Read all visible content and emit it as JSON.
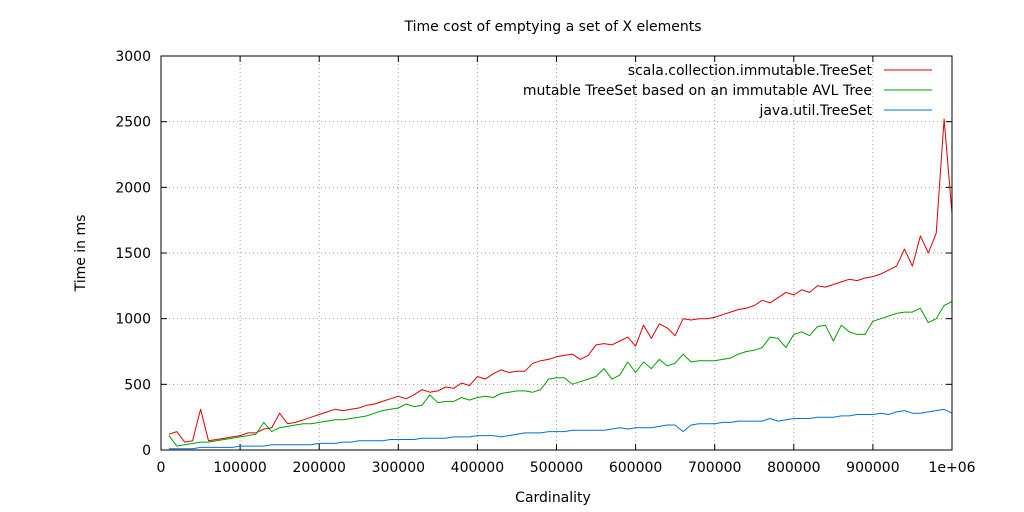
{
  "chart_data": {
    "type": "line",
    "title": "Time cost of emptying a set of X elements",
    "xlabel": "Cardinality",
    "ylabel": "Time in ms",
    "xlim": [
      0,
      1000000
    ],
    "ylim": [
      0,
      3000
    ],
    "xticks": [
      0,
      100000,
      200000,
      300000,
      400000,
      500000,
      600000,
      700000,
      800000,
      900000,
      1000000
    ],
    "xtick_labels": [
      "0",
      "100000",
      "200000",
      "300000",
      "400000",
      "500000",
      "600000",
      "700000",
      "800000",
      "900000",
      "1e+06"
    ],
    "yticks": [
      0,
      500,
      1000,
      1500,
      2000,
      2500,
      3000
    ],
    "ytick_labels": [
      "0",
      "500",
      "1000",
      "1500",
      "2000",
      "2500",
      "3000"
    ],
    "grid": true,
    "legend_position": "top-right",
    "x": [
      10000,
      20000,
      30000,
      40000,
      50000,
      60000,
      70000,
      80000,
      90000,
      100000,
      110000,
      120000,
      130000,
      140000,
      150000,
      160000,
      170000,
      180000,
      190000,
      200000,
      210000,
      220000,
      230000,
      240000,
      250000,
      260000,
      270000,
      280000,
      290000,
      300000,
      310000,
      320000,
      330000,
      340000,
      350000,
      360000,
      370000,
      380000,
      390000,
      400000,
      410000,
      420000,
      430000,
      440000,
      450000,
      460000,
      470000,
      480000,
      490000,
      500000,
      510000,
      520000,
      530000,
      540000,
      550000,
      560000,
      570000,
      580000,
      590000,
      600000,
      610000,
      620000,
      630000,
      640000,
      650000,
      660000,
      670000,
      680000,
      690000,
      700000,
      710000,
      720000,
      730000,
      740000,
      750000,
      760000,
      770000,
      780000,
      790000,
      800000,
      810000,
      820000,
      830000,
      840000,
      850000,
      860000,
      870000,
      880000,
      890000,
      900000,
      910000,
      920000,
      930000,
      940000,
      950000,
      960000,
      970000,
      980000,
      990000,
      1000000
    ],
    "series": [
      {
        "name": "scala.collection.immutable.TreeSet",
        "color": "#e00000",
        "values": [
          120,
          140,
          60,
          70,
          310,
          70,
          80,
          90,
          100,
          110,
          130,
          130,
          160,
          170,
          280,
          200,
          210,
          230,
          250,
          270,
          290,
          310,
          300,
          310,
          320,
          340,
          350,
          370,
          390,
          410,
          390,
          420,
          460,
          440,
          450,
          480,
          470,
          510,
          490,
          560,
          540,
          580,
          610,
          590,
          600,
          600,
          660,
          680,
          690,
          710,
          720,
          730,
          690,
          720,
          800,
          810,
          800,
          830,
          860,
          790,
          950,
          850,
          960,
          930,
          870,
          1000,
          990,
          1000,
          1000,
          1010,
          1030,
          1050,
          1070,
          1080,
          1100,
          1140,
          1120,
          1160,
          1200,
          1180,
          1220,
          1200,
          1250,
          1240,
          1260,
          1280,
          1300,
          1290,
          1310,
          1320,
          1340,
          1370,
          1400,
          1530,
          1400,
          1630,
          1500,
          1650,
          2520,
          1800
        ]
      },
      {
        "name": "mutable TreeSet based on an immutable AVL Tree",
        "color": "#00a000",
        "values": [
          110,
          30,
          40,
          50,
          60,
          60,
          70,
          80,
          90,
          100,
          110,
          120,
          210,
          140,
          170,
          180,
          190,
          200,
          200,
          210,
          220,
          230,
          230,
          240,
          250,
          260,
          280,
          300,
          310,
          320,
          350,
          330,
          340,
          420,
          360,
          370,
          370,
          400,
          380,
          400,
          410,
          400,
          430,
          440,
          450,
          450,
          440,
          460,
          540,
          550,
          550,
          500,
          520,
          540,
          560,
          620,
          540,
          570,
          670,
          590,
          670,
          620,
          690,
          640,
          660,
          730,
          670,
          680,
          680,
          680,
          690,
          700,
          730,
          750,
          760,
          780,
          860,
          850,
          780,
          880,
          900,
          870,
          940,
          950,
          830,
          950,
          900,
          880,
          880,
          980,
          1000,
          1020,
          1040,
          1050,
          1050,
          1080,
          970,
          1000,
          1100,
          1130
        ]
      },
      {
        "name": "java.util.TreeSet",
        "color": "#0070e0",
        "values": [
          10,
          10,
          10,
          10,
          20,
          20,
          20,
          20,
          20,
          30,
          30,
          30,
          30,
          40,
          40,
          40,
          40,
          40,
          40,
          50,
          50,
          50,
          60,
          60,
          70,
          70,
          70,
          70,
          80,
          80,
          80,
          80,
          90,
          90,
          90,
          90,
          100,
          100,
          100,
          110,
          110,
          110,
          100,
          110,
          120,
          130,
          130,
          130,
          140,
          140,
          140,
          150,
          150,
          150,
          150,
          150,
          160,
          170,
          160,
          170,
          170,
          170,
          180,
          190,
          190,
          140,
          190,
          200,
          200,
          200,
          210,
          210,
          220,
          220,
          220,
          220,
          240,
          220,
          230,
          240,
          240,
          240,
          250,
          250,
          250,
          260,
          260,
          270,
          270,
          270,
          280,
          270,
          290,
          300,
          280,
          280,
          290,
          300,
          310,
          280
        ]
      }
    ]
  }
}
